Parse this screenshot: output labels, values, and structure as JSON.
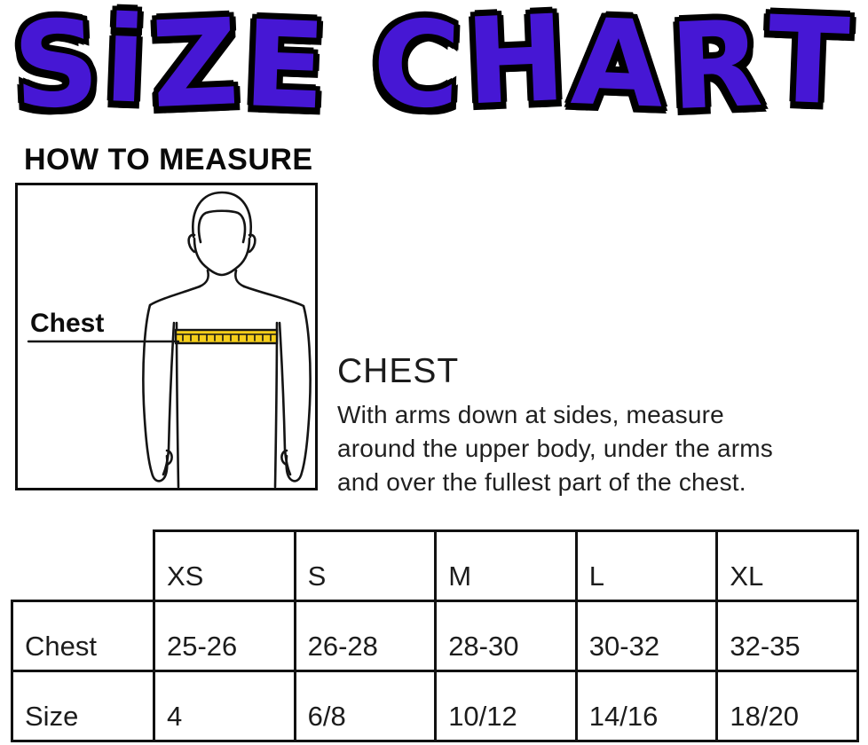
{
  "title": {
    "text": "SiZE CHART",
    "color": "#4617d4",
    "outline_color": "#000000"
  },
  "how_to_measure": {
    "heading": "HOW TO MEASURE"
  },
  "diagram": {
    "chest_label": "Chest",
    "figure": "person-torso-outline",
    "tape_color": "#f6ce1a",
    "line_color": "#141414"
  },
  "chest_section": {
    "heading": "CHEST",
    "body_lines": [
      "With arms down at sides, measure",
      "around the upper body, under the arms",
      "and over the fullest part of the chest."
    ]
  },
  "size_table": {
    "columns": [
      "XS",
      "S",
      "M",
      "L",
      "XL"
    ],
    "rows": [
      {
        "label": "Chest",
        "values": [
          "25-26",
          "26-28",
          "28-30",
          "30-32",
          "32-35"
        ]
      },
      {
        "label": "Size",
        "values": [
          "4",
          "6/8",
          "10/12",
          "14/16",
          "18/20"
        ]
      }
    ]
  }
}
